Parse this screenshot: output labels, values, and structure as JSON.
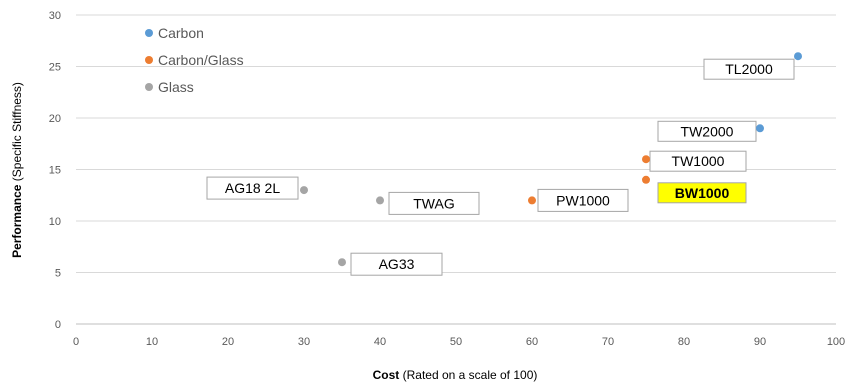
{
  "chart_data": {
    "type": "scatter",
    "xlabel_bold": "Cost",
    "xlabel_rest": " (Rated on a scale of 100)",
    "ylabel_bold": "Performance",
    "ylabel_rest": " (Specific Stiffness)",
    "xlim": [
      0,
      100
    ],
    "ylim": [
      0,
      30
    ],
    "xticks": [
      "0",
      "10",
      "20",
      "30",
      "40",
      "50",
      "60",
      "70",
      "80",
      "90",
      "100"
    ],
    "yticks": [
      "0",
      "5",
      "10",
      "15",
      "20",
      "25",
      "30"
    ],
    "grid": "horizontal",
    "legend_position": "top-left",
    "series": [
      {
        "name": "Carbon",
        "color": "#5B9BD5",
        "points": [
          {
            "x": 90,
            "y": 19,
            "label": "TW2000"
          },
          {
            "x": 95,
            "y": 26,
            "label": "TL2000"
          }
        ]
      },
      {
        "name": "Carbon/Glass",
        "color": "#ED7D31",
        "points": [
          {
            "x": 60,
            "y": 12,
            "label": "PW1000"
          },
          {
            "x": 75,
            "y": 16,
            "label": "TW1000"
          },
          {
            "x": 75,
            "y": 14,
            "label": "BW1000",
            "highlight": true
          }
        ]
      },
      {
        "name": "Glass",
        "color": "#A5A5A5",
        "points": [
          {
            "x": 30,
            "y": 13,
            "label": "AG18 2L"
          },
          {
            "x": 35,
            "y": 6,
            "label": "AG33"
          },
          {
            "x": 40,
            "y": 12,
            "label": "TWAG"
          }
        ]
      }
    ]
  }
}
